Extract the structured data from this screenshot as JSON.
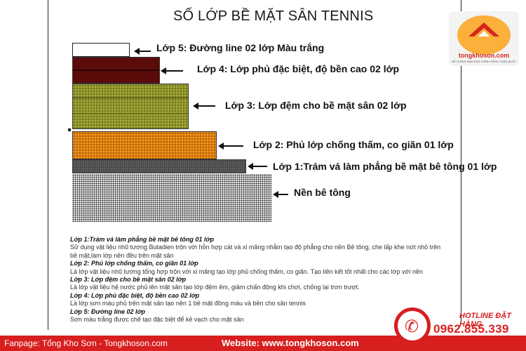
{
  "title": "SỐ LỚP BỀ MẶT SÂN TENNIS",
  "layers": [
    {
      "label": "Lớp 5: Đường line  02 lớp  Màu trắng"
    },
    {
      "label": "Lớp 4: Lớp phủ đặc biệt, độ bền cao  02 lớp"
    },
    {
      "label": "Lớp 3: Lớp đệm cho bề mặt sân  02 lớp"
    },
    {
      "label": "Lớp 2: Phủ lớp chống thấm, co giãn  01 lớp"
    },
    {
      "label": "Lớp 1:Trám vá làm phẳng bề mặt bê tông  01 lớp"
    },
    {
      "label": "Nền bê tông"
    }
  ],
  "description": [
    {
      "heading": "Lớp 1:Trám vá làm phẳng bề mặt bê tông  01 lớp",
      "text": "Sử dụng vật liệu nhũ tương Butadien trộn với hỗn hợp cát và xi măng nhằm tạo độ phẳng cho nền Bê tông, che lấp khe nứt nhỏ trên bề mặt,làm lớp nền đều trên mặt sân"
    },
    {
      "heading": "Lớp 2: Phủ lớp chống thấm, co giãn  01 lớp",
      "text": "Là lớp vật liệu nhũ tương tổng hợp trộn với xi măng tạo lớp phủ chống thấm, co giãn. Tạo liên kết tốt nhất cho các lớp với nền"
    },
    {
      "heading": "Lớp 3: Lớp đệm cho bề mặt sân  02 lớp",
      "text": "Là lớp vật liệu hệ nước phủ lên mặt sân tạo lớp đệm êm, giảm chấn động khi chơi, chống lại trơn trượt."
    },
    {
      "heading": "Lớp 4: Lớp phủ đặc biệt, độ bền cao  02 lớp",
      "text": "Là lớp sơn màu phủ trên mặt sân tạo nên 1 bề mặt đồng màu và bền cho sân tennis"
    },
    {
      "heading": "Lớp 5: Đường line  02 lớp",
      "text": "Sơn màu trắng được chế tạo đặc biệt để kẻ vạch cho mặt sân"
    }
  ],
  "logo": {
    "brand": "tongkhoson.com",
    "tagline": "HỆ THỐNG BÁN SƠN CHÍNH HÃNG TOÀN QUỐC"
  },
  "footer": {
    "fanpage": "Fanpage: Tổng Kho Sơn - Tongkhoson.com",
    "website": "Website: www.tongkhoson.com"
  },
  "hotline": {
    "title": "HOTLINE ĐẶT HÀNG",
    "number": "0962.855.339"
  }
}
